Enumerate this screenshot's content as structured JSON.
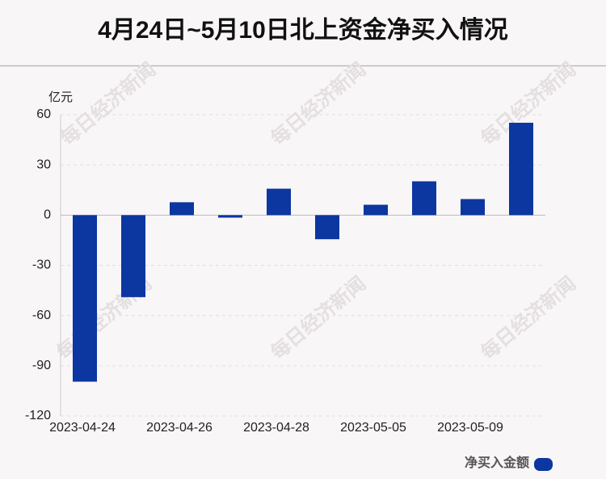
{
  "chart_data": {
    "type": "bar",
    "title": "4月24日~5月10日北上资金净买入情况",
    "y_unit": "亿元",
    "watermark": "每日经济新闻",
    "categories": [
      "2023-04-24",
      null,
      "2023-04-26",
      null,
      "2023-04-28",
      null,
      "2023-05-05",
      null,
      "2023-05-09",
      null
    ],
    "series": [
      {
        "name": "净买入金额",
        "color": "#0c36a0",
        "values": [
          -99.5,
          -49,
          7.7,
          -1.5,
          15.8,
          -14.4,
          6.2,
          20.2,
          9.6,
          55.2
        ]
      }
    ],
    "ylim": [
      -120,
      60
    ],
    "yticks": [
      -120,
      -90,
      -60,
      -30,
      0,
      30,
      60
    ],
    "grid": true
  }
}
